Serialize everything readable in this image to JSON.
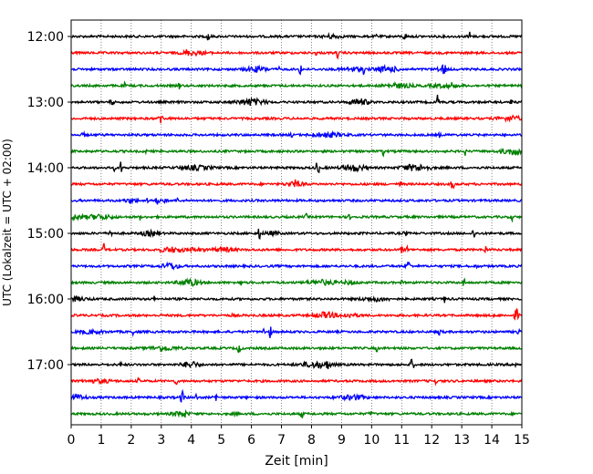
{
  "chart_data": {
    "type": "line",
    "title": "",
    "xlabel": "Zeit  [min]",
    "ylabel": "UTC (Lokalzeit = UTC + 02:00)",
    "xlim": [
      0,
      15
    ],
    "x_ticks": [
      "0",
      "1",
      "2",
      "3",
      "4",
      "5",
      "6",
      "7",
      "8",
      "9",
      "10",
      "11",
      "12",
      "13",
      "14",
      "15"
    ],
    "y_ticks": [
      "12:00",
      "13:00",
      "14:00",
      "15:00",
      "16:00",
      "17:00"
    ],
    "grid": "vertical dotted lines at each minute",
    "series_colors": [
      "#000000",
      "#ff0000",
      "#0000ff",
      "#008000"
    ],
    "trace_count": 24,
    "trace_interval_minutes": 15,
    "traces": [
      {
        "time": "12:00",
        "color": "#000000"
      },
      {
        "time": "12:15",
        "color": "#ff0000"
      },
      {
        "time": "12:30",
        "color": "#0000ff"
      },
      {
        "time": "12:45",
        "color": "#008000"
      },
      {
        "time": "13:00",
        "color": "#000000"
      },
      {
        "time": "13:15",
        "color": "#ff0000"
      },
      {
        "time": "13:30",
        "color": "#0000ff"
      },
      {
        "time": "13:45",
        "color": "#008000"
      },
      {
        "time": "14:00",
        "color": "#000000"
      },
      {
        "time": "14:15",
        "color": "#ff0000"
      },
      {
        "time": "14:30",
        "color": "#0000ff"
      },
      {
        "time": "14:45",
        "color": "#008000"
      },
      {
        "time": "15:00",
        "color": "#000000"
      },
      {
        "time": "15:15",
        "color": "#ff0000"
      },
      {
        "time": "15:30",
        "color": "#0000ff"
      },
      {
        "time": "15:45",
        "color": "#008000"
      },
      {
        "time": "16:00",
        "color": "#000000"
      },
      {
        "time": "16:15",
        "color": "#ff0000"
      },
      {
        "time": "16:30",
        "color": "#0000ff"
      },
      {
        "time": "16:45",
        "color": "#008000"
      },
      {
        "time": "17:00",
        "color": "#000000"
      },
      {
        "time": "17:15",
        "color": "#ff0000"
      },
      {
        "time": "17:30",
        "color": "#0000ff"
      },
      {
        "time": "17:45",
        "color": "#008000"
      }
    ]
  }
}
